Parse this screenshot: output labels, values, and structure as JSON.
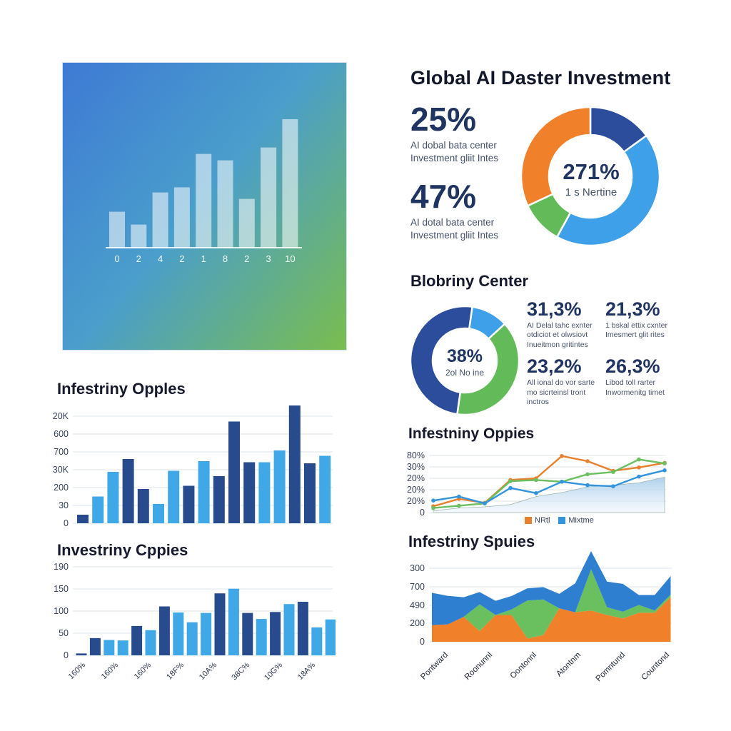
{
  "sections": {
    "investment": {
      "title": "Global AI Daster Investment",
      "stats": [
        {
          "value": "25%",
          "lines": [
            "AI dobal bata center",
            "Investment gliit Intes"
          ]
        },
        {
          "value": "47%",
          "lines": [
            "AI dotal bata center",
            "Investment gliit Intes"
          ]
        }
      ]
    },
    "blobriny": {
      "title": "Blobriny Center",
      "stats": [
        {
          "value": "31,3%",
          "lines": [
            "AI Delal tahc exnter",
            "otdiciot et olwsiovt",
            "Inueitmon gritintes"
          ]
        },
        {
          "value": "21,3%",
          "lines": [
            "1 bskal ettix cxnter",
            "Imesmert glit rites"
          ]
        },
        {
          "value": "23,2%",
          "lines": [
            "All ional do vor sarte",
            "mo sicrteinsl tront",
            "inctros"
          ]
        },
        {
          "value": "26,3%",
          "lines": [
            "Libod toll rarter",
            "Inwormenitg timet"
          ]
        }
      ]
    }
  },
  "colors": {
    "navy": "#1f3461",
    "dark_blue": "#2b4d9b",
    "light_blue": "#41a8e8",
    "green": "#62bb58",
    "orange": "#f0802a",
    "bar_dark": "#274b8d",
    "bar_light": "#41a8e8"
  },
  "chart_data": [
    {
      "id": "hero-bars",
      "type": "bar",
      "title": "",
      "categories": [
        "0",
        "2",
        "4",
        "2",
        "1",
        "8",
        "2",
        "3",
        "10"
      ],
      "values": [
        28,
        18,
        43,
        47,
        73,
        68,
        38,
        78,
        100
      ],
      "ylim": [
        0,
        100
      ],
      "bar_color": "rgba(255,255,255,0.55)",
      "note": "translucent white bars on blue-green gradient panel"
    },
    {
      "id": "donut-investment",
      "type": "pie",
      "center_value": "271%",
      "center_label": "1 s Nertine",
      "segments": [
        {
          "name": "dark-blue",
          "color": "#2b4d9b",
          "pct": 15
        },
        {
          "name": "light-blue",
          "color": "#3da0e8",
          "pct": 43
        },
        {
          "name": "green",
          "color": "#62bb58",
          "pct": 10
        },
        {
          "name": "orange",
          "color": "#f0802a",
          "pct": 32
        }
      ],
      "start_angle": 0
    },
    {
      "id": "donut-blobriny",
      "type": "pie",
      "center_value": "38%",
      "center_label": "2ol No ine",
      "segments": [
        {
          "name": "light-blue",
          "color": "#3da0e8",
          "pct": 11
        },
        {
          "name": "green",
          "color": "#62bb58",
          "pct": 39
        },
        {
          "name": "dark-blue",
          "color": "#2b4d9b",
          "pct": 50
        }
      ],
      "start_angle": 8
    },
    {
      "id": "mid-left-bars",
      "type": "bar",
      "title": "Infestriny Opples",
      "y_ticks": [
        "20K",
        "600",
        "700",
        "30K",
        "200",
        "30",
        "0"
      ],
      "values": [
        8,
        25,
        48,
        60,
        32,
        18,
        49,
        35,
        58,
        44,
        95,
        57,
        57,
        68,
        110,
        56,
        63
      ],
      "bar_palette": [
        "d",
        "l",
        "l",
        "d",
        "d",
        "l",
        "l",
        "d",
        "l",
        "d",
        "d",
        "d",
        "l",
        "l",
        "d",
        "d",
        "l"
      ],
      "ylim": [
        0,
        100
      ],
      "grid": true
    },
    {
      "id": "bottom-left-bars",
      "type": "bar",
      "title": "Investriny Cppies",
      "y_ticks": [
        "190",
        "150",
        "100",
        "50",
        "0"
      ],
      "x_labels": [
        "160%",
        "160%",
        "160%",
        "18F%",
        "10A%",
        "38C%",
        "10G%",
        "18A%"
      ],
      "values": [
        4,
        37,
        33,
        32,
        63,
        54,
        105,
        92,
        71,
        91,
        133,
        143,
        91,
        78,
        93,
        110,
        115,
        60,
        77
      ],
      "bar_palette": [
        "d",
        "d",
        "l",
        "l",
        "d",
        "l",
        "d",
        "l",
        "l",
        "l",
        "d",
        "l",
        "d",
        "l",
        "d",
        "l",
        "d",
        "l",
        "l"
      ],
      "ylim": [
        0,
        190
      ],
      "grid": true
    },
    {
      "id": "right-line",
      "type": "line",
      "title": "Infestniny Oppies",
      "y_ticks": [
        "80%",
        "30%",
        "20%",
        "20%",
        "20%",
        "0"
      ],
      "legend": [
        "NRtl",
        "Mixtme"
      ],
      "legend_position": "bottom",
      "x": [
        0,
        1,
        2,
        3,
        4,
        5,
        6,
        7,
        8,
        9
      ],
      "series": [
        {
          "name": "area",
          "color": "#bcd8ef",
          "kind": "area",
          "values": [
            3,
            8,
            10,
            14,
            28,
            35,
            45,
            48,
            52,
            62
          ]
        },
        {
          "name": "NRtl",
          "color": "#e8812c",
          "kind": "line",
          "values": [
            11,
            24,
            17,
            57,
            60,
            99,
            90,
            73,
            79,
            87
          ]
        },
        {
          "name": "green",
          "color": "#6abf5e",
          "kind": "line",
          "values": [
            8,
            12,
            16,
            55,
            57,
            54,
            67,
            71,
            93,
            86
          ]
        },
        {
          "name": "Mixtme",
          "color": "#3394dd",
          "kind": "line",
          "values": [
            21,
            28,
            16,
            43,
            34,
            54,
            48,
            46,
            63,
            74
          ]
        }
      ],
      "ylim": [
        0,
        100
      ],
      "grid": true
    },
    {
      "id": "right-stacked-area",
      "type": "area",
      "title": "Infestriny Spuies",
      "y_ticks": [
        "300",
        "700",
        "490",
        "200",
        "0"
      ],
      "x_labels": [
        "Pontward",
        "Roonunnl",
        "Oontonnl",
        "Atontnm",
        "Pomntund",
        "Countond"
      ],
      "series": [
        {
          "name": "orange",
          "color": "#f0802a",
          "values": [
            75,
            78,
            112,
            48,
            120,
            120,
            15,
            30,
            150,
            132,
            140,
            120,
            105,
            130,
            130,
            200
          ]
        },
        {
          "name": "green",
          "color": "#6abf5e",
          "values": [
            0,
            0,
            0,
            120,
            0,
            25,
            170,
            160,
            0,
            0,
            185,
            35,
            30,
            35,
            10,
            12
          ]
        },
        {
          "name": "blue",
          "color": "#2f7fd1",
          "values": [
            145,
            128,
            88,
            55,
            64,
            60,
            55,
            55,
            65,
            130,
            82,
            115,
            125,
            45,
            70,
            83
          ]
        }
      ],
      "ylim": [
        0,
        330
      ],
      "grid": true,
      "stacked": true
    }
  ]
}
